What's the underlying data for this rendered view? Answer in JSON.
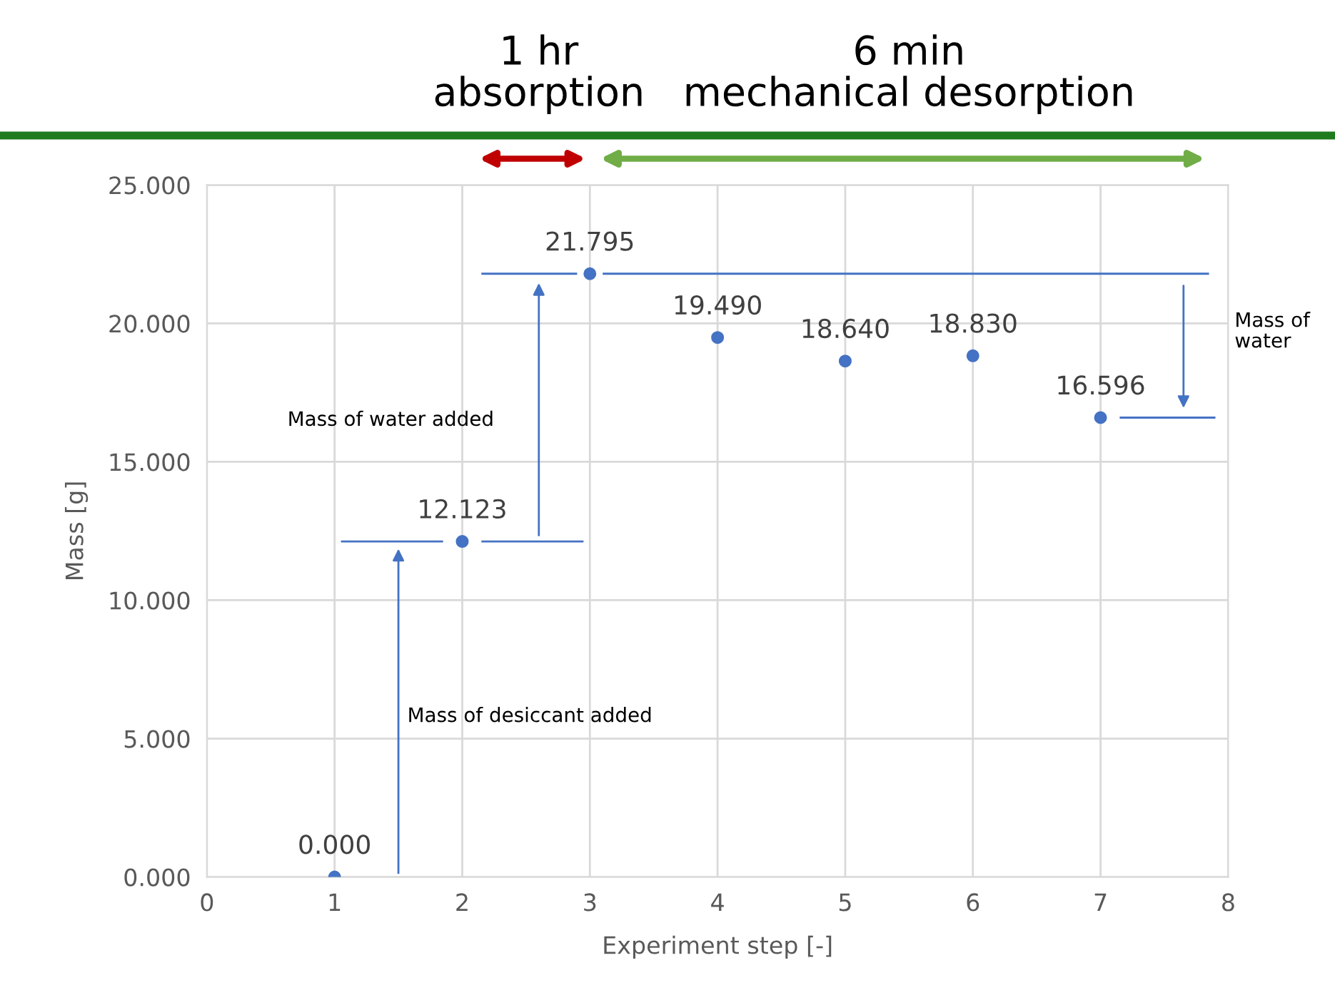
{
  "chart_data": {
    "type": "scatter",
    "xlabel": "Experiment step [-]",
    "ylabel": "Mass [g]",
    "x": [
      1,
      2,
      3,
      4,
      5,
      6,
      7
    ],
    "series": [
      {
        "color": "#4472c4",
        "values": [
          0.0,
          12.123,
          21.795,
          19.49,
          18.64,
          18.83,
          16.596
        ],
        "value_labels": [
          "0.000",
          "12.123",
          "21.795",
          "19.490",
          "18.640",
          "18.830",
          "16.596"
        ]
      }
    ],
    "xlim": [
      0,
      8
    ],
    "xticks": [
      0,
      1,
      2,
      3,
      4,
      5,
      6,
      7,
      8
    ],
    "ylim": [
      0,
      25
    ],
    "yticks": [
      {
        "value": 0,
        "label": "0.000"
      },
      {
        "value": 5,
        "label": "5.000"
      },
      {
        "value": 10,
        "label": "10.000"
      },
      {
        "value": 15,
        "label": "15.000"
      },
      {
        "value": 20,
        "label": "20.000"
      },
      {
        "value": 25,
        "label": "25.000"
      }
    ],
    "grid": true,
    "marker": "circle",
    "legend": false,
    "annotations": [
      "1 hr\nabsorption",
      "6 min\nmechanical desorption",
      "Mass of water added",
      "Mass of desiccant added",
      "Mass of\nwater"
    ]
  }
}
